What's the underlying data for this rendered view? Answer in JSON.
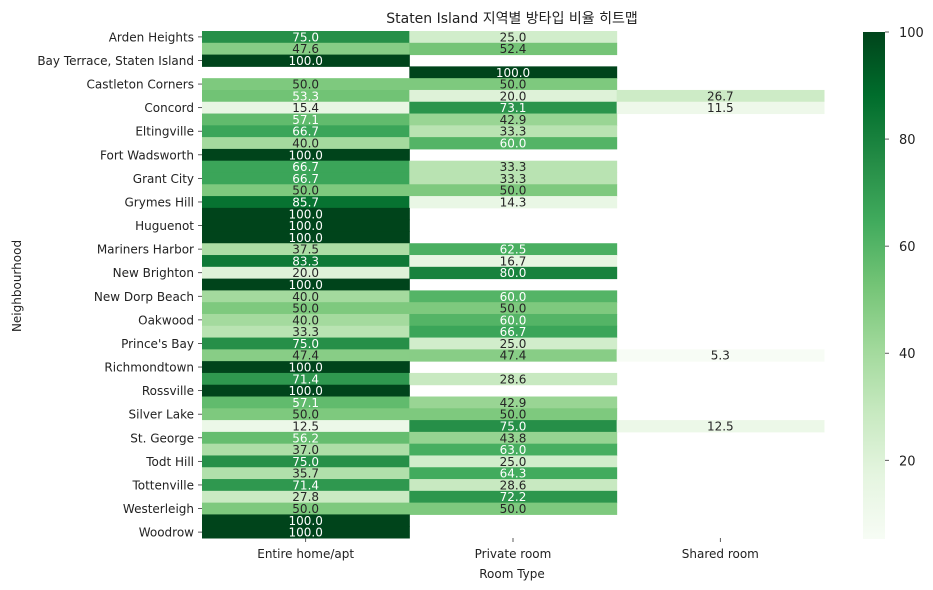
{
  "chart_data": {
    "type": "heatmap",
    "title": "Staten Island 지역별 방타입 비율 히트맵",
    "xlabel": "Room Type",
    "ylabel": "Neighbourhood",
    "columns": [
      "Entire home/apt",
      "Private room",
      "Shared room"
    ],
    "row_tick_labels": [
      "Arden Heights",
      "Bay Terrace, Staten Island",
      "Castleton Corners",
      "Concord",
      "Eltingville",
      "Fort Wadsworth",
      "Grant City",
      "Grymes Hill",
      "Huguenot",
      "Mariners Harbor",
      "New Brighton",
      "New Dorp Beach",
      "Oakwood",
      "Prince's Bay",
      "Richmondtown",
      "Rossville",
      "Silver Lake",
      "St. George",
      "Todt Hill",
      "Tottenville",
      "Westerleigh",
      "Woodrow"
    ],
    "tick_label_every": 2,
    "values": [
      [
        75.0,
        25.0,
        null
      ],
      [
        47.6,
        52.4,
        null
      ],
      [
        100.0,
        null,
        null
      ],
      [
        null,
        100.0,
        null
      ],
      [
        50.0,
        50.0,
        null
      ],
      [
        53.3,
        20.0,
        26.7
      ],
      [
        15.4,
        73.1,
        11.5
      ],
      [
        57.1,
        42.9,
        null
      ],
      [
        66.7,
        33.3,
        null
      ],
      [
        40.0,
        60.0,
        null
      ],
      [
        100.0,
        null,
        null
      ],
      [
        66.7,
        33.3,
        null
      ],
      [
        66.7,
        33.3,
        null
      ],
      [
        50.0,
        50.0,
        null
      ],
      [
        85.7,
        14.3,
        null
      ],
      [
        100.0,
        null,
        null
      ],
      [
        100.0,
        null,
        null
      ],
      [
        100.0,
        null,
        null
      ],
      [
        37.5,
        62.5,
        null
      ],
      [
        83.3,
        16.7,
        null
      ],
      [
        20.0,
        80.0,
        null
      ],
      [
        100.0,
        null,
        null
      ],
      [
        40.0,
        60.0,
        null
      ],
      [
        50.0,
        50.0,
        null
      ],
      [
        40.0,
        60.0,
        null
      ],
      [
        33.3,
        66.7,
        null
      ],
      [
        75.0,
        25.0,
        null
      ],
      [
        47.4,
        47.4,
        5.3
      ],
      [
        100.0,
        null,
        null
      ],
      [
        71.4,
        28.6,
        null
      ],
      [
        100.0,
        null,
        null
      ],
      [
        57.1,
        42.9,
        null
      ],
      [
        50.0,
        50.0,
        null
      ],
      [
        12.5,
        75.0,
        12.5
      ],
      [
        56.2,
        43.8,
        null
      ],
      [
        37.0,
        63.0,
        null
      ],
      [
        75.0,
        25.0,
        null
      ],
      [
        35.7,
        64.3,
        null
      ],
      [
        71.4,
        28.6,
        null
      ],
      [
        27.8,
        72.2,
        null
      ],
      [
        50.0,
        50.0,
        null
      ],
      [
        100.0,
        null,
        null
      ],
      [
        100.0,
        null,
        null
      ]
    ],
    "value_format": "0.0",
    "colormap": "Greens",
    "vmin": 5.3,
    "vmax": 100.0,
    "colorbar_ticks": [
      "20",
      "40",
      "60",
      "80",
      "100"
    ],
    "colors": {
      "low": "#f7fcf5",
      "high": "#00441b"
    },
    "grid": false
  }
}
